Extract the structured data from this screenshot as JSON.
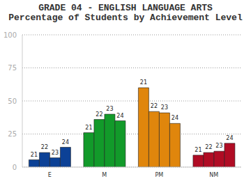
{
  "chart_data": {
    "type": "bar",
    "title": "GRADE 04 - ENGLISH LANGUAGE ARTS",
    "subtitle": "Percentage of Students by Achievement Level",
    "categories": [
      "E",
      "M",
      "PM",
      "NM"
    ],
    "series": [
      {
        "name": "21",
        "values": [
          5.5,
          26,
          60,
          9
        ]
      },
      {
        "name": "22",
        "values": [
          11,
          36,
          42,
          11
        ]
      },
      {
        "name": "23",
        "values": [
          7,
          40,
          41,
          12
        ]
      },
      {
        "name": "24",
        "values": [
          15,
          35,
          33,
          18
        ]
      }
    ],
    "colors": [
      "#0c4196",
      "#129a2a",
      "#e0860c",
      "#b00c24"
    ],
    "ylim": [
      0,
      100
    ],
    "yticks": [
      0,
      25,
      50,
      75,
      100
    ],
    "grid": true
  }
}
